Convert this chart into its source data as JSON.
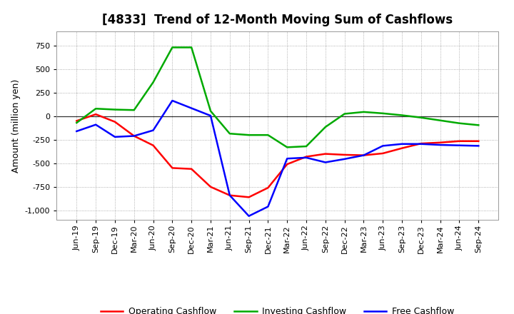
{
  "title": "[4833]  Trend of 12-Month Moving Sum of Cashflows",
  "ylabel": "Amount (million yen)",
  "background_color": "#ffffff",
  "plot_bg_color": "#ffffff",
  "grid_color": "#999999",
  "xlabels": [
    "Jun-19",
    "Sep-19",
    "Dec-19",
    "Mar-20",
    "Jun-20",
    "Sep-20",
    "Dec-20",
    "Mar-21",
    "Jun-21",
    "Sep-21",
    "Dec-21",
    "Mar-22",
    "Jun-22",
    "Sep-22",
    "Dec-22",
    "Mar-23",
    "Jun-23",
    "Sep-23",
    "Dec-23",
    "Mar-24",
    "Jun-24",
    "Sep-24"
  ],
  "operating": [
    -50,
    20,
    -60,
    -210,
    -310,
    -550,
    -560,
    -750,
    -840,
    -860,
    -760,
    -510,
    -430,
    -400,
    -410,
    -415,
    -395,
    -340,
    -290,
    -280,
    -265,
    -265
  ],
  "investing": [
    -70,
    80,
    70,
    65,
    360,
    730,
    730,
    55,
    -185,
    -200,
    -200,
    -330,
    -320,
    -115,
    25,
    45,
    30,
    10,
    -15,
    -45,
    -75,
    -95
  ],
  "free": [
    -160,
    -90,
    -220,
    -210,
    -150,
    165,
    85,
    5,
    -840,
    -1060,
    -960,
    -450,
    -440,
    -490,
    -455,
    -415,
    -315,
    -295,
    -295,
    -305,
    -310,
    -315
  ],
  "ylim": [
    -1100,
    900
  ],
  "yticks": [
    -1000,
    -750,
    -500,
    -250,
    0,
    250,
    500,
    750
  ],
  "line_colors": {
    "operating": "#ff0000",
    "investing": "#00aa00",
    "free": "#0000ff"
  },
  "line_width": 1.8,
  "title_fontsize": 12,
  "axis_label_fontsize": 9,
  "tick_fontsize": 8,
  "legend_fontsize": 9
}
